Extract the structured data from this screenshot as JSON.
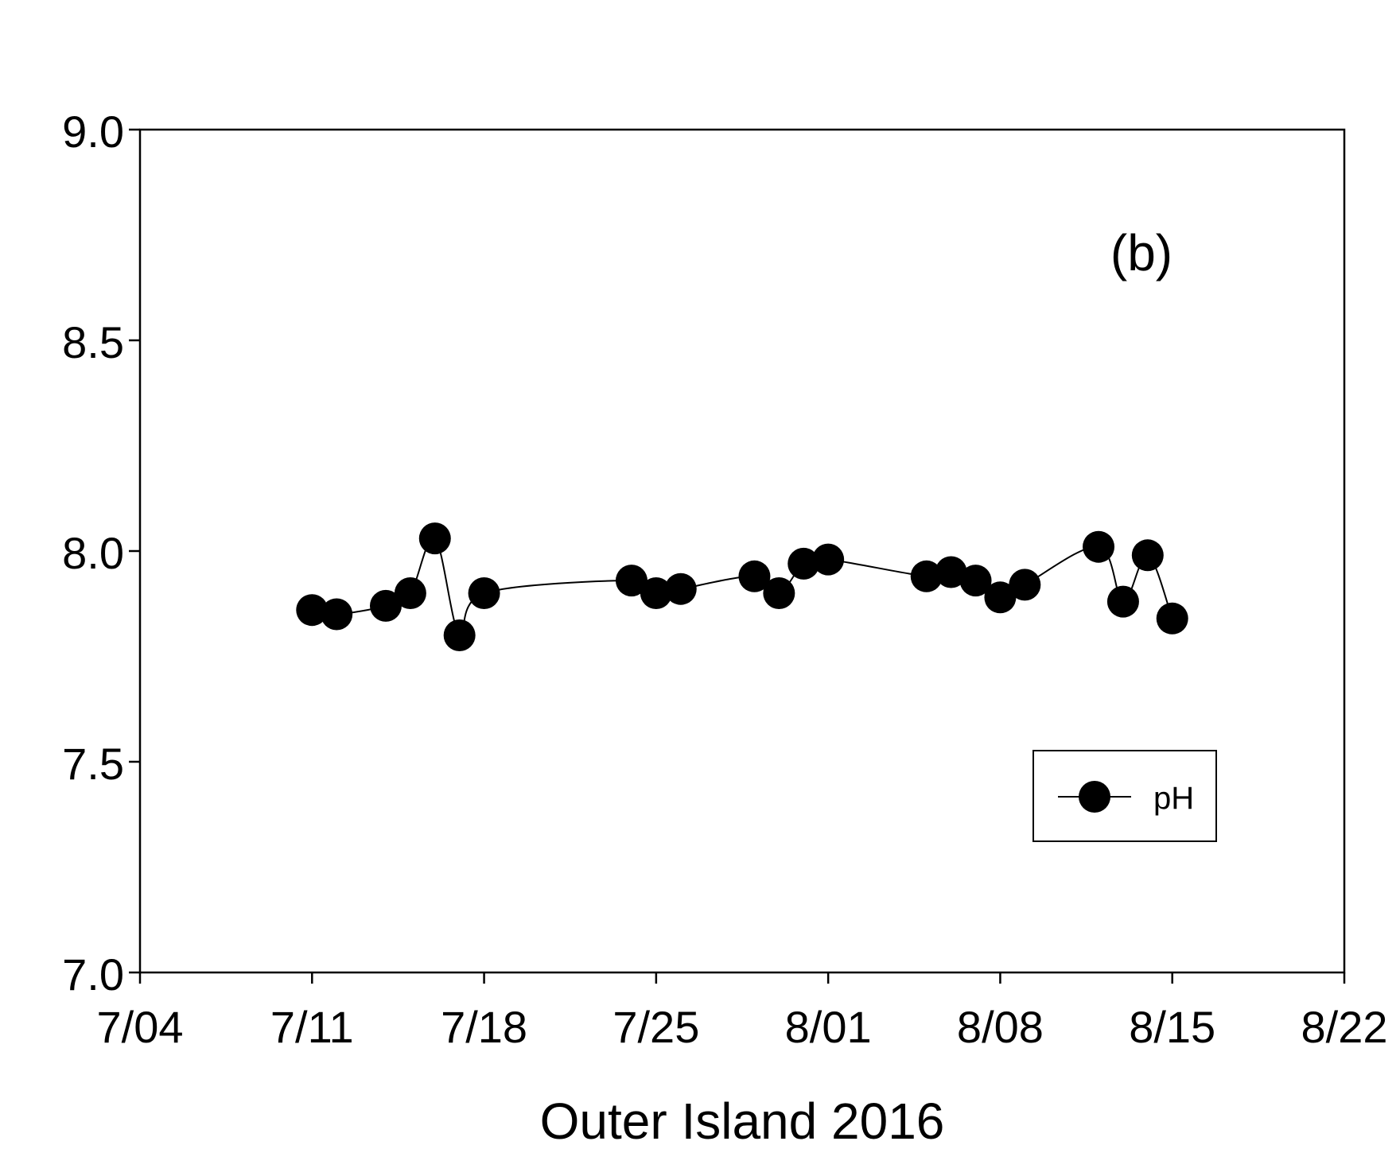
{
  "chart_data": {
    "type": "line",
    "xlabel": "Outer Island 2016",
    "ylabel": "",
    "annotation": "(b)",
    "grid": false,
    "legend_position": "bottom-right",
    "xlim": [
      "2016-07-04",
      "2016-08-22"
    ],
    "ylim": [
      7.0,
      9.0
    ],
    "x_ticks": [
      {
        "date": "2016-07-04",
        "label": "7/04"
      },
      {
        "date": "2016-07-11",
        "label": "7/11"
      },
      {
        "date": "2016-07-18",
        "label": "7/18"
      },
      {
        "date": "2016-07-25",
        "label": "7/25"
      },
      {
        "date": "2016-08-01",
        "label": "8/01"
      },
      {
        "date": "2016-08-08",
        "label": "8/08"
      },
      {
        "date": "2016-08-15",
        "label": "8/15"
      },
      {
        "date": "2016-08-22",
        "label": "8/22"
      }
    ],
    "y_ticks": [
      {
        "value": 7.0,
        "label": "7.0"
      },
      {
        "value": 7.5,
        "label": "7.5"
      },
      {
        "value": 8.0,
        "label": "8.0"
      },
      {
        "value": 8.5,
        "label": "8.5"
      },
      {
        "value": 9.0,
        "label": "9.0"
      }
    ],
    "series": [
      {
        "name": "pH",
        "color": "#000000",
        "marker": "filled-circle",
        "smooth": true,
        "points": [
          {
            "x": "2016-07-11",
            "y": 7.86
          },
          {
            "x": "2016-07-12",
            "y": 7.85
          },
          {
            "x": "2016-07-14",
            "y": 7.87
          },
          {
            "x": "2016-07-15",
            "y": 7.9
          },
          {
            "x": "2016-07-16",
            "y": 8.03
          },
          {
            "x": "2016-07-17",
            "y": 7.8
          },
          {
            "x": "2016-07-18",
            "y": 7.9
          },
          {
            "x": "2016-07-24",
            "y": 7.93
          },
          {
            "x": "2016-07-25",
            "y": 7.9
          },
          {
            "x": "2016-07-26",
            "y": 7.91
          },
          {
            "x": "2016-07-29",
            "y": 7.94
          },
          {
            "x": "2016-07-30",
            "y": 7.9
          },
          {
            "x": "2016-07-31",
            "y": 7.97
          },
          {
            "x": "2016-08-01",
            "y": 7.98
          },
          {
            "x": "2016-08-05",
            "y": 7.94
          },
          {
            "x": "2016-08-06",
            "y": 7.95
          },
          {
            "x": "2016-08-07",
            "y": 7.93
          },
          {
            "x": "2016-08-08",
            "y": 7.89
          },
          {
            "x": "2016-08-09",
            "y": 7.92
          },
          {
            "x": "2016-08-12",
            "y": 8.01
          },
          {
            "x": "2016-08-13",
            "y": 7.88
          },
          {
            "x": "2016-08-14",
            "y": 7.99
          },
          {
            "x": "2016-08-15",
            "y": 7.84
          }
        ]
      }
    ]
  }
}
